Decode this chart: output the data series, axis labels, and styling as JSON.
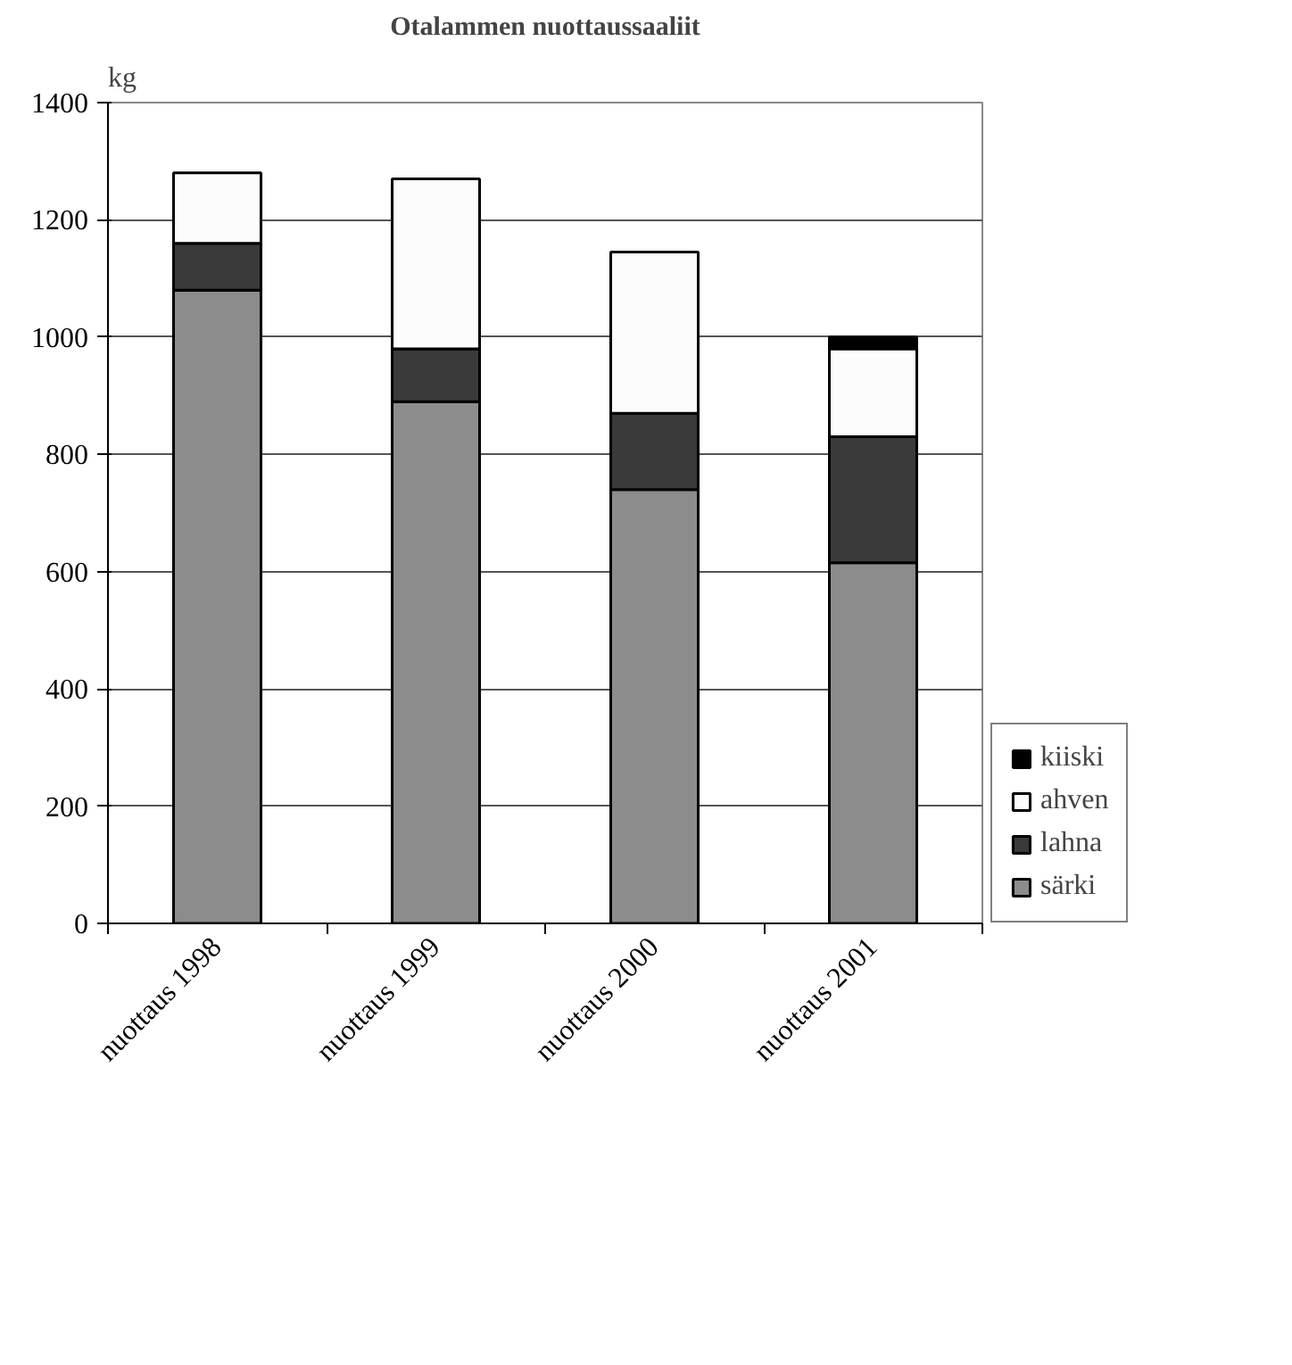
{
  "chart_data": {
    "type": "bar",
    "stacked": true,
    "title": "Otalammen nuottaussaaliit",
    "ylabel": "kg",
    "categories": [
      "nuottaus 1998",
      "nuottaus 1999",
      "nuottaus 2000",
      "nuottaus 2001"
    ],
    "series": [
      {
        "name": "särki",
        "color": "#8c8c8c",
        "values": [
          1080,
          890,
          740,
          615
        ]
      },
      {
        "name": "lahna",
        "color": "#3a3a3a",
        "values": [
          80,
          90,
          130,
          215
        ]
      },
      {
        "name": "ahven",
        "color": "#fcfcfc",
        "values": [
          120,
          290,
          275,
          150
        ]
      },
      {
        "name": "kiiski",
        "color": "#000000",
        "values": [
          null,
          null,
          null,
          20
        ]
      }
    ],
    "ylim": [
      0,
      1400
    ],
    "yticks": [
      0,
      200,
      400,
      600,
      800,
      1000,
      1200,
      1400
    ],
    "grid": "y",
    "legend": "right"
  }
}
